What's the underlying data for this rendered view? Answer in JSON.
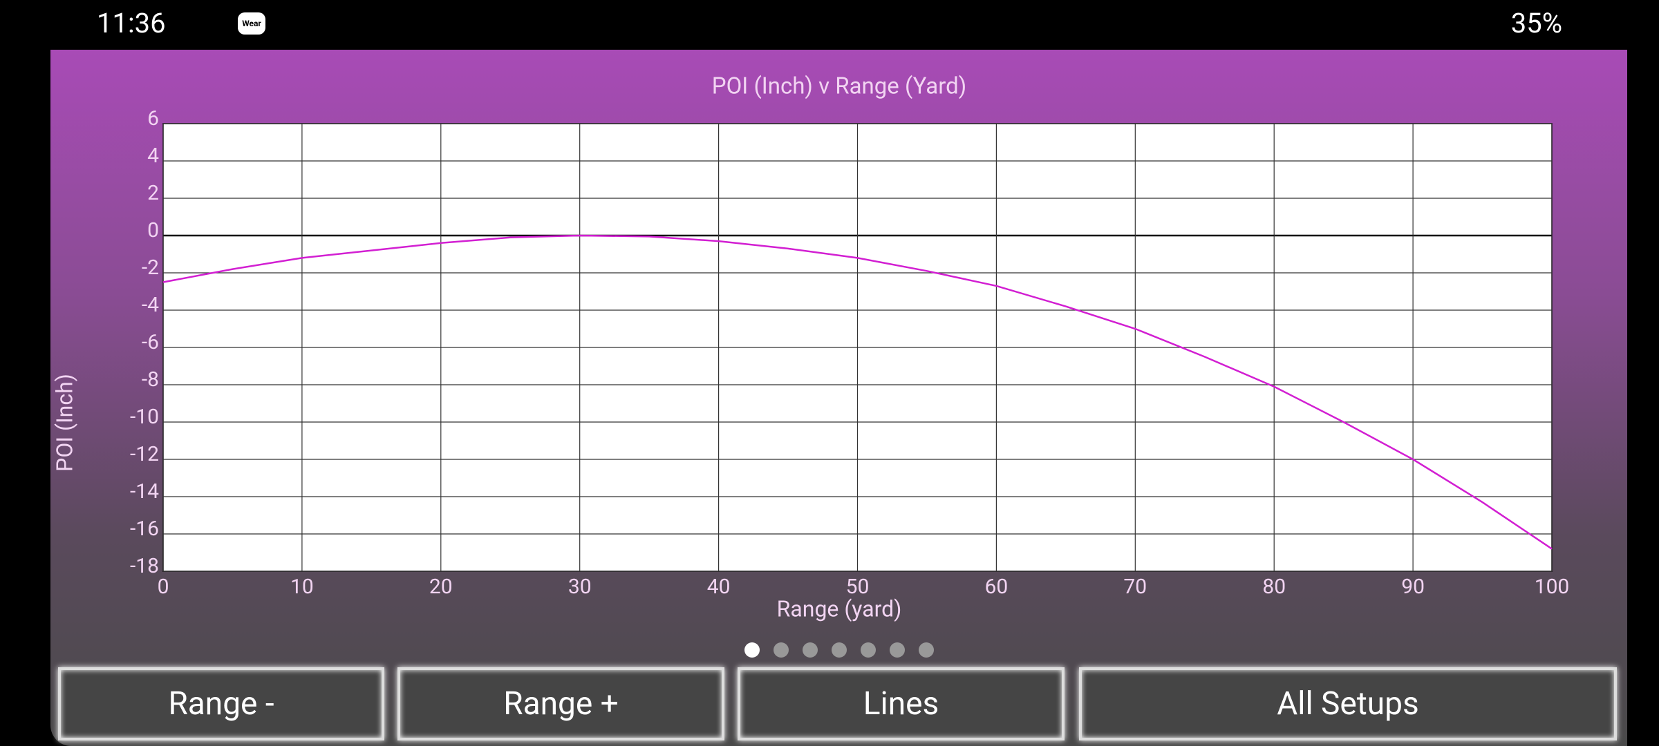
{
  "status_bar": {
    "time": "11:36",
    "wear_icon": "Wear",
    "battery": "35%"
  },
  "chart_data": {
    "type": "line",
    "title": "POI (Inch) v Range (Yard)",
    "x_label": "Range (yard)",
    "y_label": "POI (Inch)",
    "x": [
      0,
      5,
      10,
      15,
      20,
      25,
      30,
      35,
      40,
      45,
      50,
      55,
      60,
      65,
      70,
      75,
      80,
      85,
      90,
      95,
      100
    ],
    "series": [
      {
        "color": "#d21fd2",
        "values": [
          -2.5,
          -1.8,
          -1.2,
          -0.8,
          -0.4,
          -0.1,
          0,
          -0.05,
          -0.3,
          -0.7,
          -1.2,
          -1.9,
          -2.7,
          -3.8,
          -5.0,
          -6.5,
          -8.1,
          -10.0,
          -12.0,
          -14.3,
          -16.8
        ]
      }
    ],
    "xlim": [
      0,
      100
    ],
    "xticks": [
      0,
      10,
      20,
      30,
      40,
      50,
      60,
      70,
      80,
      90,
      100
    ],
    "ylim": [
      -18,
      6
    ],
    "yticks": [
      -18,
      -16,
      -14,
      -12,
      -10,
      -8,
      -6,
      -4,
      -2,
      0,
      2,
      4,
      6
    ],
    "grid": true
  },
  "buttons": [
    "Range -",
    "Range +",
    "Lines",
    "All Setups"
  ]
}
